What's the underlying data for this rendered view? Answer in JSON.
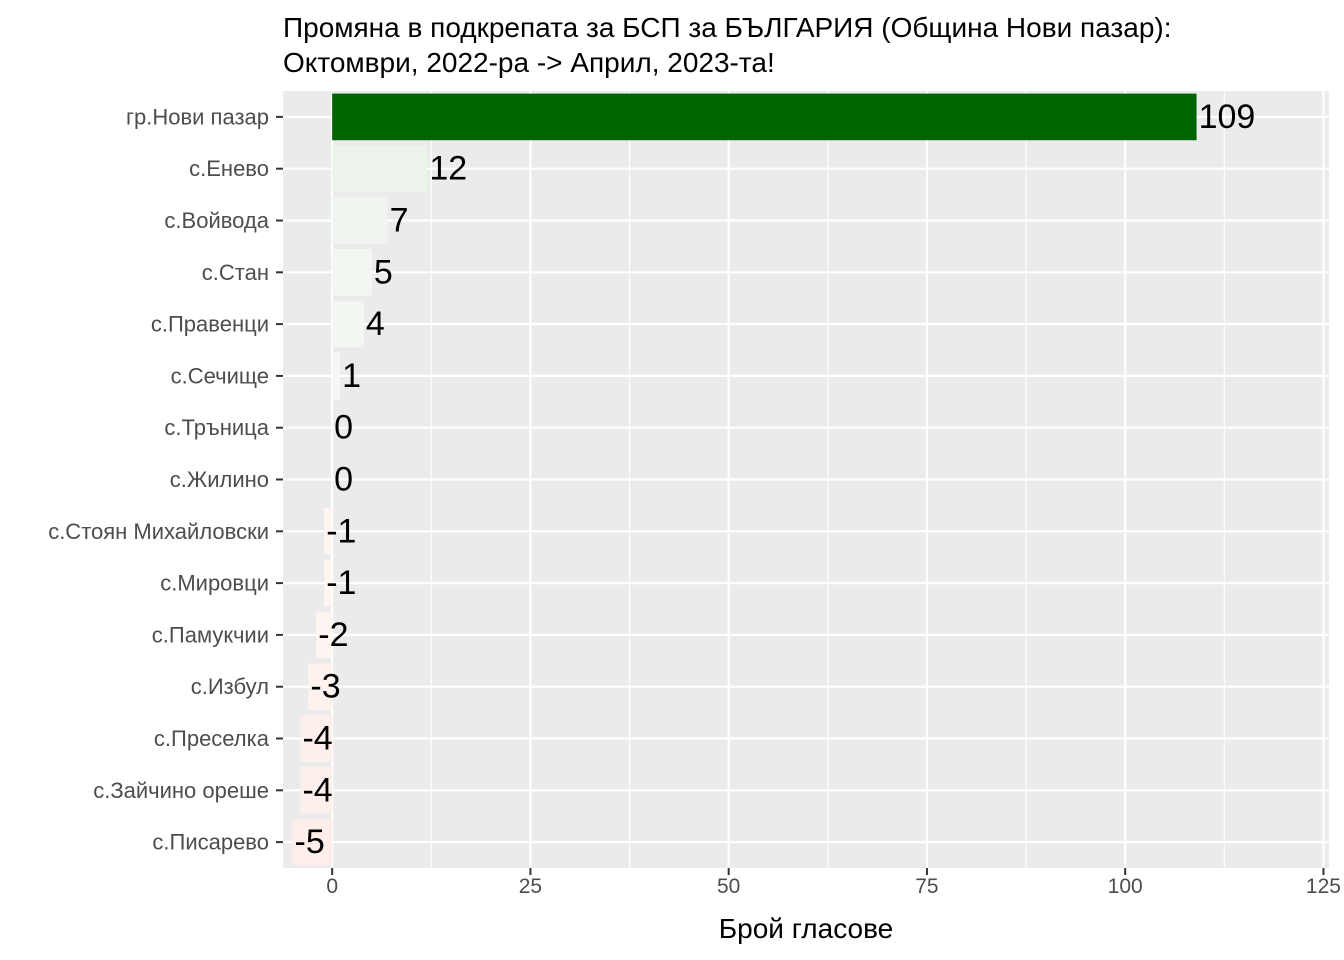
{
  "chart_data": {
    "type": "bar",
    "orientation": "horizontal",
    "title": "Промяна в подкрепата за БСП за БЪЛГАРИЯ (Община Нови пазар):",
    "subtitle": "Октомври, 2022-ра -> Април, 2023-та!",
    "xlabel": "Брой гласове",
    "ylabel": "",
    "categories": [
      "гр.Нови пазар",
      "с.Енево",
      "с.Войвода",
      "с.Стан",
      "с.Правенци",
      "с.Сечище",
      "с.Тръница",
      "с.Жилино",
      "с.Стоян Михайловски",
      "с.Мировци",
      "с.Памукчии",
      "с.Избул",
      "с.Преселка",
      "с.Зайчино ореше",
      "с.Писарево"
    ],
    "values": [
      109,
      12,
      7,
      5,
      4,
      1,
      0,
      0,
      -1,
      -1,
      -2,
      -3,
      -4,
      -4,
      -5
    ],
    "xlim": [
      -6.2,
      125.7
    ],
    "xticks": [
      0,
      25,
      50,
      75,
      100,
      125
    ],
    "grid": true,
    "legend": "none",
    "colors": {
      "panel_background": "#ebebeb",
      "grid": "#ffffff",
      "positive_high": "#006400",
      "positive_low": "#f4f8f3",
      "negative_low": "#fff8f6",
      "negative_high": "#fdeeea"
    }
  }
}
